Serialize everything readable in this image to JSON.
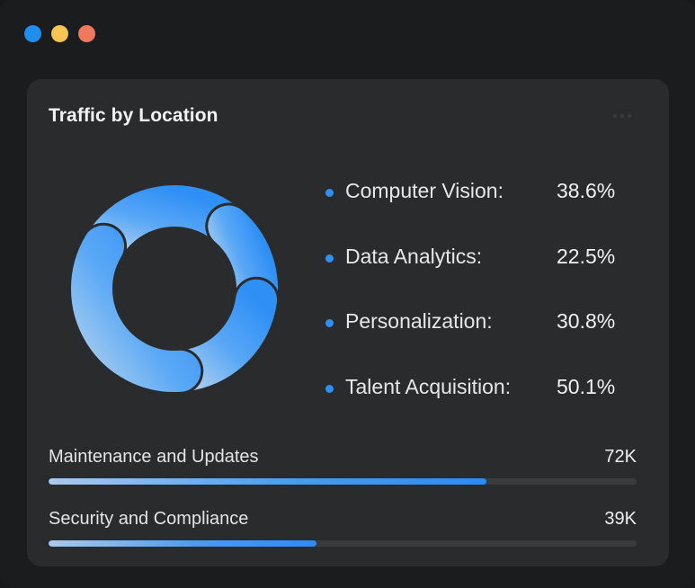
{
  "window": {
    "controls": [
      {
        "name": "close",
        "color": "#1e8ef0"
      },
      {
        "name": "minimize",
        "color": "#f5c451"
      },
      {
        "name": "maximize",
        "color": "#f0795d"
      }
    ]
  },
  "card": {
    "title": "Traffic by Location",
    "menu_icon": "more-horizontal-icon"
  },
  "chart_data": {
    "type": "pie",
    "style": "donut",
    "categories": [
      "Computer Vision",
      "Data Analytics",
      "Personalization",
      "Talent Acquisition"
    ],
    "values": [
      38.6,
      22.5,
      30.8,
      50.1
    ],
    "unit": "%",
    "colors": {
      "accent": "#2f8ff5",
      "light": "#a4cbef"
    }
  },
  "legend": [
    {
      "label": "Computer Vision:",
      "value": "38.6%"
    },
    {
      "label": "Data Analytics:",
      "value": "22.5%"
    },
    {
      "label": "Personalization:",
      "value": "30.8%"
    },
    {
      "label": "Talent Acquisition:",
      "value": "50.1%"
    }
  ],
  "bullet_color": "#2f8ff5",
  "progress": [
    {
      "label": "Maintenance and Updates",
      "value": "72K",
      "fill_fraction": 0.745
    },
    {
      "label": "Security and Compliance",
      "value": "39K",
      "fill_fraction": 0.455
    }
  ]
}
